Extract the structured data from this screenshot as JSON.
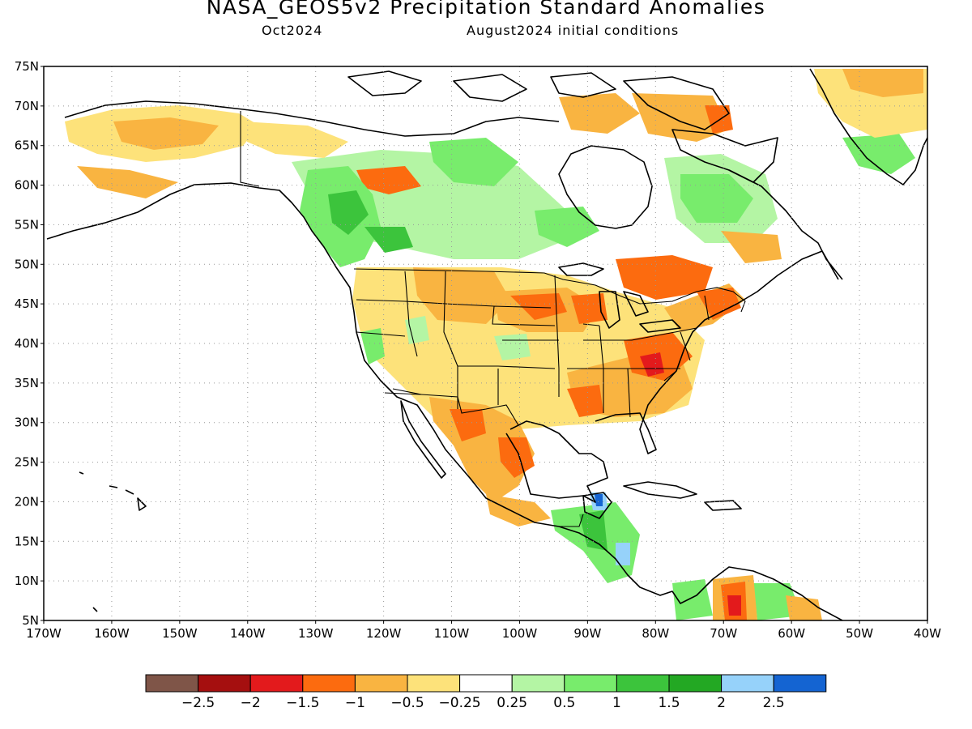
{
  "header": {
    "title": "NASA_GEOS5v2 Precipitation Standard Anomalies",
    "subtitle_left": "Oct2024",
    "subtitle_right": "August2024 initial conditions"
  },
  "map": {
    "lon_range": [
      -170,
      -40
    ],
    "lat_range": [
      5,
      75
    ],
    "lat_ticks": [
      "75N",
      "70N",
      "65N",
      "60N",
      "55N",
      "50N",
      "45N",
      "40N",
      "35N",
      "30N",
      "25N",
      "20N",
      "15N",
      "10N",
      "5N"
    ],
    "lon_ticks": [
      "170W",
      "160W",
      "150W",
      "140W",
      "130W",
      "120W",
      "110W",
      "100W",
      "90W",
      "80W",
      "70W",
      "60W",
      "50W",
      "40W"
    ],
    "gridlines": "dotted"
  },
  "colorbar": {
    "colors": [
      "#7f5548",
      "#a50f0f",
      "#e31a1c",
      "#fc6b0f",
      "#f9b441",
      "#fde27a",
      "#ffffff",
      "#b4f5a4",
      "#78ec6c",
      "#3cc43c",
      "#23a823",
      "#96d2fa",
      "#1464d2"
    ],
    "labels": [
      "-2.5",
      "-2",
      "-1.5",
      "-1",
      "-0.5",
      "-0.25",
      "0.25",
      "0.5",
      "1",
      "1.5",
      "2",
      "2.5"
    ]
  },
  "anomaly_colors": {
    "dry_light": "#fde27a",
    "dry": "#f9b441",
    "dry_strong": "#fc6b0f",
    "dry_extreme": "#e31a1c",
    "wet_light": "#b4f5a4",
    "wet": "#78ec6c",
    "wet_strong": "#3cc43c",
    "wet_very_strong": "#23a823",
    "wet_extreme": "#96d2fa",
    "wet_max": "#1464d2"
  }
}
